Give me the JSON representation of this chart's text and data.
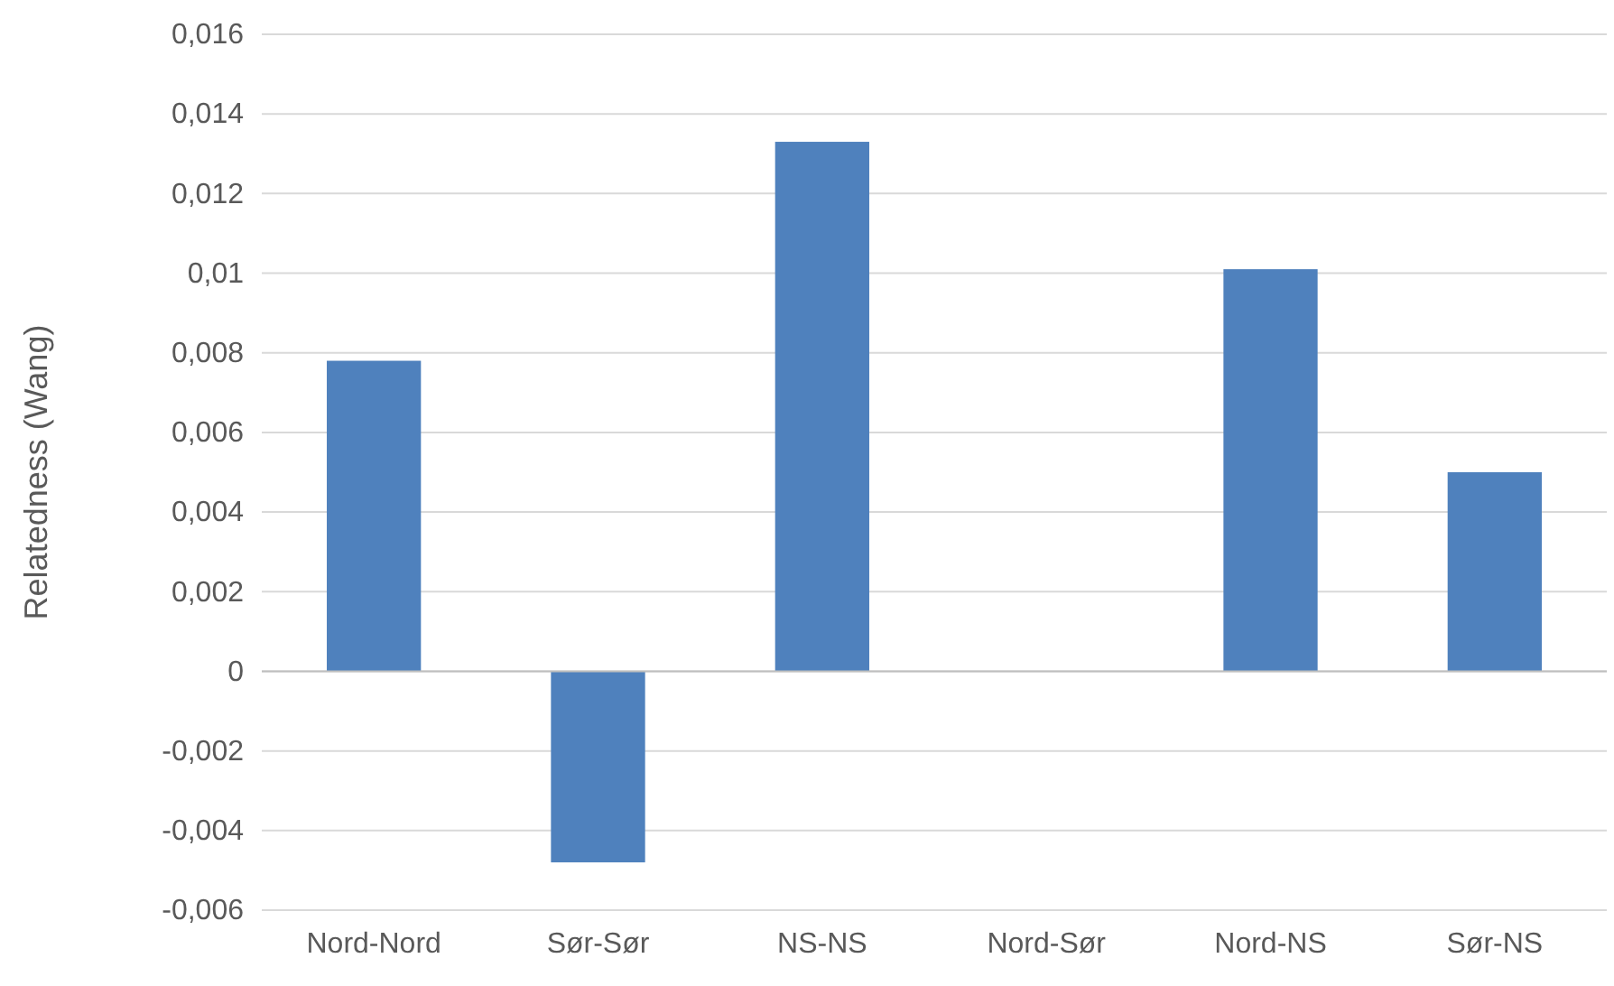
{
  "chart_data": {
    "type": "bar",
    "ylabel": "Relatedness (Wang)",
    "categories": [
      "Nord-Nord",
      "Sør-Sør",
      "NS-NS",
      "Nord-Sør",
      "Nord-NS",
      "Sør-NS"
    ],
    "values": [
      0.0078,
      -0.0048,
      0.0133,
      0,
      0.0101,
      0.005
    ],
    "color": "#4f81bd",
    "ylim": [
      -0.006,
      0.016
    ],
    "yticks": [
      {
        "value": -0.006,
        "label": "-0,006"
      },
      {
        "value": -0.004,
        "label": "-0,004"
      },
      {
        "value": -0.002,
        "label": "-0,002"
      },
      0,
      {
        "value": 0.002,
        "label": "0,002"
      },
      {
        "value": 0.004,
        "label": "0,004"
      },
      {
        "value": 0.006,
        "label": "0,006"
      },
      {
        "value": 0.008,
        "label": "0,008"
      },
      {
        "value": 0.01,
        "label": "0,01"
      },
      {
        "value": 0.012,
        "label": "0,012"
      },
      {
        "value": 0.014,
        "label": "0,014"
      },
      {
        "value": 0.016,
        "label": "0,016"
      }
    ],
    "grid": true
  }
}
